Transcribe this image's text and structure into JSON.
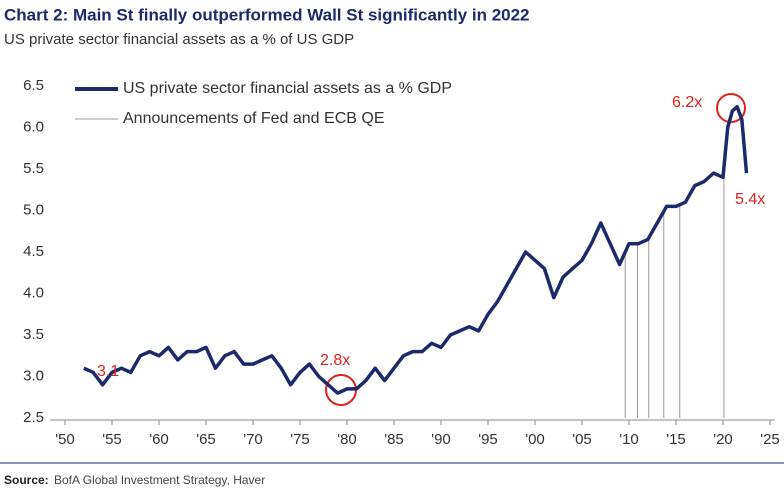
{
  "chart_data": {
    "type": "line",
    "title": "Chart 2:  Main St finally outperformed Wall St significantly in 2022",
    "subtitle": "US private sector financial assets as a % of US GDP",
    "source_label": "Source:",
    "source": "BofA Global Investment Strategy, Haver",
    "x": [
      1952,
      1953,
      1954,
      1955,
      1956,
      1957,
      1958,
      1959,
      1960,
      1961,
      1962,
      1963,
      1964,
      1965,
      1966,
      1967,
      1968,
      1969,
      1970,
      1971,
      1972,
      1973,
      1974,
      1975,
      1976,
      1977,
      1978,
      1979,
      1980,
      1981,
      1982,
      1983,
      1984,
      1985,
      1986,
      1987,
      1988,
      1989,
      1990,
      1991,
      1992,
      1993,
      1994,
      1995,
      1996,
      1997,
      1998,
      1999,
      2000,
      2001,
      2002,
      2003,
      2004,
      2005,
      2006,
      2007,
      2008,
      2009,
      2010,
      2011,
      2012,
      2013,
      2014,
      2015,
      2016,
      2017,
      2018,
      2019,
      2020,
      2020.5,
      2021,
      2021.5,
      2022,
      2022.5
    ],
    "series": [
      {
        "name": "US private sector financial assets as a % GDP",
        "color": "#1c2a6b",
        "values": [
          3.1,
          3.05,
          2.9,
          3.05,
          3.1,
          3.05,
          3.25,
          3.3,
          3.25,
          3.35,
          3.2,
          3.3,
          3.3,
          3.35,
          3.1,
          3.25,
          3.3,
          3.15,
          3.15,
          3.2,
          3.25,
          3.1,
          2.9,
          3.05,
          3.15,
          3.0,
          2.9,
          2.8,
          2.85,
          2.85,
          2.95,
          3.1,
          2.95,
          3.1,
          3.25,
          3.3,
          3.3,
          3.4,
          3.35,
          3.5,
          3.55,
          3.6,
          3.55,
          3.75,
          3.9,
          4.1,
          4.3,
          4.5,
          4.4,
          4.3,
          3.95,
          4.2,
          4.3,
          4.4,
          4.6,
          4.85,
          4.6,
          4.35,
          4.6,
          4.6,
          4.65,
          4.85,
          5.05,
          5.05,
          5.1,
          5.3,
          5.35,
          5.45,
          5.4,
          6.0,
          6.2,
          6.25,
          6.1,
          5.45
        ]
      }
    ],
    "qe_announcements": {
      "name": "Announcements of Fed and ECB QE",
      "color": "#999999",
      "x": [
        2009.6,
        2010.9,
        2012.1,
        2013.7,
        2015.4,
        2020.1
      ]
    },
    "annotations": [
      "3.1",
      "2.8x",
      "6.2x",
      "5.4x"
    ],
    "xlim": [
      1950,
      2025
    ],
    "xticks": [
      {
        "value": 1950,
        "label": "'50"
      },
      {
        "value": 1955,
        "label": "'55"
      },
      {
        "value": 1960,
        "label": "'60"
      },
      {
        "value": 1965,
        "label": "'65"
      },
      {
        "value": 1970,
        "label": "'70"
      },
      {
        "value": 1975,
        "label": "'75"
      },
      {
        "value": 1980,
        "label": "'80"
      },
      {
        "value": 1985,
        "label": "'85"
      },
      {
        "value": 1990,
        "label": "'90"
      },
      {
        "value": 1995,
        "label": "'95"
      },
      {
        "value": 2000,
        "label": "'00"
      },
      {
        "value": 2005,
        "label": "'05"
      },
      {
        "value": 2010,
        "label": "'10"
      },
      {
        "value": 2015,
        "label": "'15"
      },
      {
        "value": 2020,
        "label": "'20"
      },
      {
        "value": 2025,
        "label": "'25"
      }
    ],
    "ylim": [
      2.5,
      6.5
    ],
    "yticks": [
      2.5,
      {
        "value": 3,
        "label": "3.0"
      },
      3.5,
      {
        "value": 4,
        "label": "4.0"
      },
      4.5,
      {
        "value": 5,
        "label": "5.0"
      },
      5.5,
      {
        "value": 6,
        "label": "6.0"
      },
      6.5
    ],
    "grid": false
  }
}
